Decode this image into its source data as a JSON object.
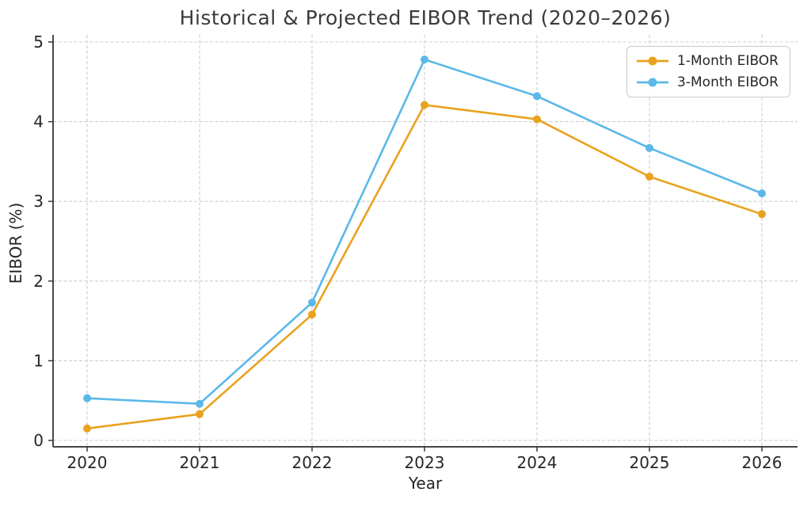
{
  "chart_data": {
    "type": "line",
    "title": "Historical & Projected EIBOR Trend (2020–2026)",
    "xlabel": "Year",
    "ylabel": "EIBOR (%)",
    "categories": [
      "2020",
      "2021",
      "2022",
      "2023",
      "2024",
      "2025",
      "2026"
    ],
    "series": [
      {
        "name": "1-Month EIBOR",
        "color": "#E8A21E",
        "values": [
          0.15,
          0.33,
          1.58,
          4.21,
          4.03,
          3.31,
          2.84
        ]
      },
      {
        "name": "3-Month EIBOR",
        "color": "#5BB8E8",
        "values": [
          0.53,
          0.46,
          1.73,
          4.78,
          4.32,
          3.67,
          3.1
        ]
      }
    ],
    "yticks": [
      0,
      1,
      2,
      3,
      4,
      5
    ],
    "ylim": [
      0,
      5
    ],
    "grid": true,
    "grid_style": "dashed",
    "grid_color": "#cccccc",
    "axis_color": "#2b2b2b",
    "text_color": "#262626",
    "legend_position": "upper right",
    "marker": "circle"
  }
}
